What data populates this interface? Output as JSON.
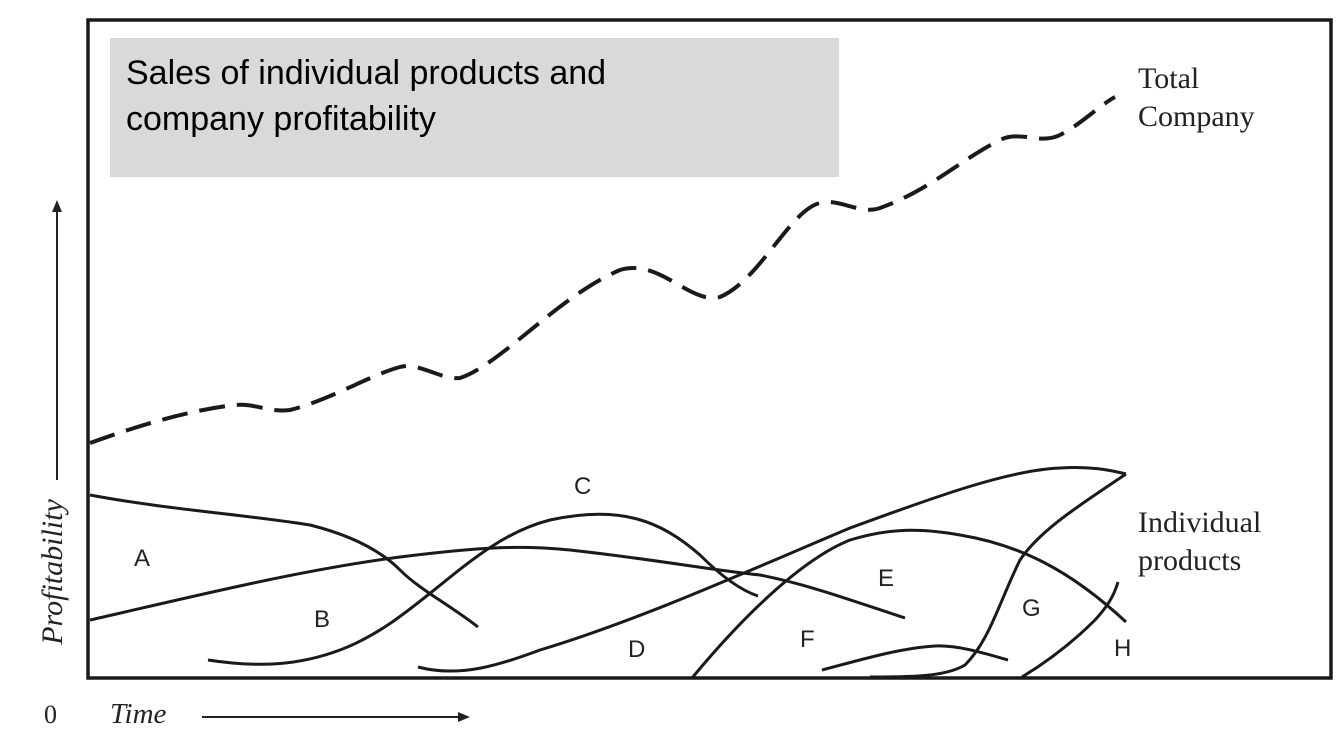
{
  "title": {
    "line1": "Sales of individual products and",
    "line2": "company profitability"
  },
  "axes": {
    "y_label": "Profitability",
    "x_label": "Time",
    "origin_label": "0"
  },
  "legend": {
    "total_company_line1": "Total",
    "total_company_line2": "Company",
    "individual_line1": "Individual",
    "individual_line2": "products"
  },
  "curve_labels": [
    "A",
    "B",
    "C",
    "D",
    "E",
    "F",
    "G",
    "H"
  ],
  "colors": {
    "stroke": "#1a1a1a",
    "title_box": "#d9d9d9",
    "label_text": "#222222"
  }
}
